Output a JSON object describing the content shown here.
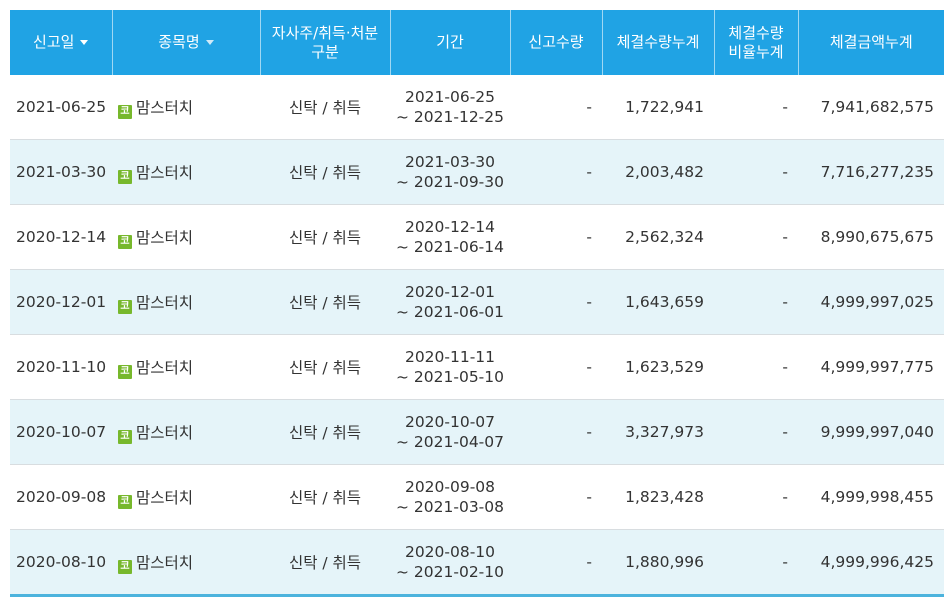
{
  "columns": {
    "report_date": "신고일",
    "stock_name": "종목명",
    "type": "자사주/취득·처분\n구분",
    "period": "기간",
    "report_qty": "신고수량",
    "exec_qty_cum": "체결수량누계",
    "exec_ratio_cum": "체결수량\n비율누계",
    "exec_amount_cum": "체결금액누계"
  },
  "badge_icon": "kosdaq-market-badge",
  "badge_text": "코",
  "badge_color": "#77b82c",
  "header_color": "#20a3e4",
  "alt_row_color": "#e5f4f9",
  "rows": [
    {
      "report_date": "2021-06-25",
      "name": "맘스터치",
      "type": "신탁 / 취득",
      "period_start": "2021-06-25",
      "period_end": "~ 2021-12-25",
      "report_qty": "-",
      "exec_qty": "1,722,941",
      "exec_ratio": "-",
      "exec_amount": "7,941,682,575"
    },
    {
      "report_date": "2021-03-30",
      "name": "맘스터치",
      "type": "신탁 / 취득",
      "period_start": "2021-03-30",
      "period_end": "~ 2021-09-30",
      "report_qty": "-",
      "exec_qty": "2,003,482",
      "exec_ratio": "-",
      "exec_amount": "7,716,277,235"
    },
    {
      "report_date": "2020-12-14",
      "name": "맘스터치",
      "type": "신탁 / 취득",
      "period_start": "2020-12-14",
      "period_end": "~ 2021-06-14",
      "report_qty": "-",
      "exec_qty": "2,562,324",
      "exec_ratio": "-",
      "exec_amount": "8,990,675,675"
    },
    {
      "report_date": "2020-12-01",
      "name": "맘스터치",
      "type": "신탁 / 취득",
      "period_start": "2020-12-01",
      "period_end": "~ 2021-06-01",
      "report_qty": "-",
      "exec_qty": "1,643,659",
      "exec_ratio": "-",
      "exec_amount": "4,999,997,025"
    },
    {
      "report_date": "2020-11-10",
      "name": "맘스터치",
      "type": "신탁 / 취득",
      "period_start": "2020-11-11",
      "period_end": "~ 2021-05-10",
      "report_qty": "-",
      "exec_qty": "1,623,529",
      "exec_ratio": "-",
      "exec_amount": "4,999,997,775"
    },
    {
      "report_date": "2020-10-07",
      "name": "맘스터치",
      "type": "신탁 / 취득",
      "period_start": "2020-10-07",
      "period_end": "~ 2021-04-07",
      "report_qty": "-",
      "exec_qty": "3,327,973",
      "exec_ratio": "-",
      "exec_amount": "9,999,997,040"
    },
    {
      "report_date": "2020-09-08",
      "name": "맘스터치",
      "type": "신탁 / 취득",
      "period_start": "2020-09-08",
      "period_end": "~ 2021-03-08",
      "report_qty": "-",
      "exec_qty": "1,823,428",
      "exec_ratio": "-",
      "exec_amount": "4,999,998,455"
    },
    {
      "report_date": "2020-08-10",
      "name": "맘스터치",
      "type": "신탁 / 취득",
      "period_start": "2020-08-10",
      "period_end": "~ 2021-02-10",
      "report_qty": "-",
      "exec_qty": "1,880,996",
      "exec_ratio": "-",
      "exec_amount": "4,999,996,425"
    }
  ]
}
